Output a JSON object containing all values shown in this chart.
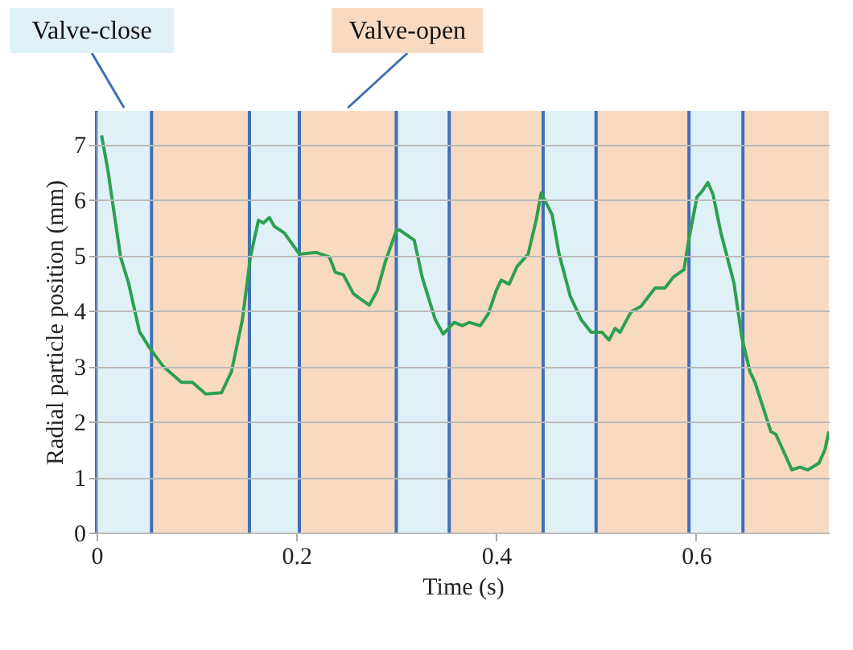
{
  "chart_data": {
    "type": "line",
    "xlabel": "Time (s)",
    "ylabel": "Radial particle position (mm)",
    "xlim": [
      0,
      0.733
    ],
    "ylim": [
      0,
      7.6
    ],
    "xticks": [
      0,
      0.2,
      0.4,
      0.6
    ],
    "yticks": [
      0,
      1,
      2,
      3,
      4,
      5,
      6,
      7
    ],
    "grid": "y",
    "series": [
      {
        "color": "#2ca04f",
        "x": [
          0.005,
          0.011,
          0.024,
          0.032,
          0.043,
          0.053,
          0.067,
          0.085,
          0.096,
          0.109,
          0.125,
          0.135,
          0.146,
          0.154,
          0.162,
          0.167,
          0.173,
          0.178,
          0.188,
          0.203,
          0.22,
          0.233,
          0.239,
          0.247,
          0.257,
          0.262,
          0.273,
          0.281,
          0.289,
          0.3,
          0.303,
          0.318,
          0.326,
          0.339,
          0.347,
          0.358,
          0.366,
          0.373,
          0.384,
          0.392,
          0.4,
          0.405,
          0.413,
          0.421,
          0.432,
          0.44,
          0.445,
          0.456,
          0.463,
          0.474,
          0.485,
          0.495,
          0.506,
          0.513,
          0.519,
          0.524,
          0.535,
          0.545,
          0.559,
          0.569,
          0.577,
          0.588,
          0.593,
          0.601,
          0.606,
          0.612,
          0.617,
          0.625,
          0.638,
          0.646,
          0.654,
          0.659,
          0.675,
          0.68,
          0.696,
          0.704,
          0.712,
          0.723,
          0.729,
          0.733
        ],
        "values": [
          7.16,
          6.57,
          4.97,
          4.5,
          3.62,
          3.33,
          2.99,
          2.71,
          2.71,
          2.5,
          2.52,
          2.9,
          3.84,
          4.97,
          5.63,
          5.58,
          5.68,
          5.52,
          5.4,
          5.02,
          5.05,
          4.97,
          4.69,
          4.65,
          4.31,
          4.24,
          4.1,
          4.36,
          4.88,
          5.44,
          5.46,
          5.27,
          4.6,
          3.84,
          3.58,
          3.79,
          3.73,
          3.79,
          3.73,
          3.94,
          4.36,
          4.55,
          4.48,
          4.8,
          5.02,
          5.63,
          6.12,
          5.73,
          5.02,
          4.27,
          3.84,
          3.61,
          3.61,
          3.47,
          3.68,
          3.61,
          3.98,
          4.08,
          4.41,
          4.41,
          4.6,
          4.74,
          5.3,
          6.05,
          6.15,
          6.31,
          6.1,
          5.4,
          4.5,
          3.51,
          2.9,
          2.71,
          1.82,
          1.77,
          1.13,
          1.18,
          1.13,
          1.25,
          1.49,
          1.82
        ]
      }
    ],
    "bands": [
      {
        "axis": "x",
        "from": 0,
        "to": 0.055,
        "label": "Valve-close",
        "color": "#dff0f6"
      },
      {
        "axis": "x",
        "from": 0.055,
        "to": 0.153,
        "color": "#f8dac2"
      },
      {
        "axis": "x",
        "from": 0.153,
        "to": 0.203,
        "color": "#dff0f6"
      },
      {
        "axis": "x",
        "from": 0.203,
        "to": 0.3,
        "label": "Valve-open",
        "color": "#f8dac2"
      },
      {
        "axis": "x",
        "from": 0.3,
        "to": 0.353,
        "color": "#dff0f6"
      },
      {
        "axis": "x",
        "from": 0.353,
        "to": 0.447,
        "color": "#f8dac2"
      },
      {
        "axis": "x",
        "from": 0.447,
        "to": 0.5,
        "color": "#dff0f6"
      },
      {
        "axis": "x",
        "from": 0.5,
        "to": 0.593,
        "color": "#f8dac2"
      },
      {
        "axis": "x",
        "from": 0.593,
        "to": 0.647,
        "color": "#dff0f6"
      },
      {
        "axis": "x",
        "from": 0.647,
        "to": 0.733,
        "color": "#f8dac2"
      }
    ],
    "ref_lines": [
      {
        "axis": "x",
        "value": 0,
        "color": "#3f6fb5"
      },
      {
        "axis": "x",
        "value": 0.055,
        "color": "#3f6fb5"
      },
      {
        "axis": "x",
        "value": 0.153,
        "color": "#3f6fb5"
      },
      {
        "axis": "x",
        "value": 0.203,
        "color": "#3f6fb5"
      },
      {
        "axis": "x",
        "value": 0.3,
        "color": "#3f6fb5"
      },
      {
        "axis": "x",
        "value": 0.353,
        "color": "#3f6fb5"
      },
      {
        "axis": "x",
        "value": 0.447,
        "color": "#3f6fb5"
      },
      {
        "axis": "x",
        "value": 0.5,
        "color": "#3f6fb5"
      },
      {
        "axis": "x",
        "value": 0.593,
        "color": "#3f6fb5"
      },
      {
        "axis": "x",
        "value": 0.647,
        "color": "#3f6fb5"
      }
    ]
  }
}
